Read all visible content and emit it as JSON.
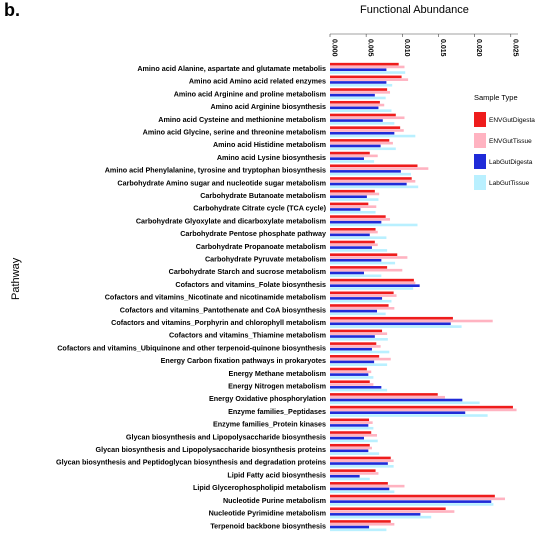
{
  "panel_label": "b.",
  "chart_data": {
    "type": "bar",
    "orientation": "horizontal",
    "title": "Functional Abundance",
    "xlabel": "",
    "ylabel": "Pathway",
    "xlim": [
      0,
      0.026
    ],
    "x_ticks": [
      "0.000",
      "0.005",
      "0.010",
      "0.015",
      "0.020",
      "0.025"
    ],
    "x_tick_values": [
      0,
      0.005,
      0.01,
      0.015,
      0.02,
      0.025
    ],
    "x_axis_position": "top",
    "grid": false,
    "legend": {
      "title": "Sample Type",
      "position": "right"
    },
    "categories": [
      "Amino acid Alanine, aspartate and glutamate metabolis",
      "Amino acid Amino acid related enzymes",
      "Amino acid Arginine and proline metabolism",
      "Amino acid Arginine biosynthesis",
      "Amino acid Cysteine and methionine metabolism",
      "Amino acid Glycine, serine and threonine metabolism",
      "Amino acid Histidine metabolism",
      "Amino acid Lysine biosynthesis",
      "Amino acid Phenylalanine, tyrosine and tryptophan biosynthesis",
      "Carbohydrate Amino sugar and nucleotide sugar metabolism",
      "Carbohydrate Butanoate metabolism",
      "Carbohydrate Citrate cycle (TCA cycle)",
      "Carbohydrate Glyoxylate and dicarboxylate metabolism",
      "Carbohydrate Pentose phosphate pathway",
      "Carbohydrate Propanoate metabolism",
      "Carbohydrate Pyruvate metabolism",
      "Carbohydrate Starch and sucrose metabolism",
      "Cofactors and vitamins_Folate biosynthesis",
      "Cofactors and vitamins_Nicotinate and nicotinamide metabolism",
      "Cofactors and vitamins_Pantothenate and CoA biosynthesis",
      "Cofactors and vitamins_Porphyrin and chlorophyll metabolism",
      "Cofactors and vitamins_Thiamine metabolism",
      "Cofactors and vitamins_Ubiquinone and other terpenoid-quinone biosynthesis",
      "Energy Carbon fixation pathways in prokaryotes",
      "Energy Methane metabolism",
      "Energy Nitrogen metabolism",
      "Energy Oxidative phosphorylation",
      "Enzyme families_Peptidases",
      "Enzyme families_Protein kinases",
      "Glycan biosynthesis and Lipopolysaccharide biosynthesis",
      "Glycan biosynthesis and Lipopolysaccharide biosynthesis proteins",
      "Glycan biosynthesis and Peptidoglycan biosynthesis and degradation proteins",
      "Lipid Fatty acid biosynthesis",
      "Lipid Glycerophospholipid metabolism",
      "Nucleotide Purine metabolism",
      "Nucleotide Pyrimidine metabolism",
      "Terpenoid backbone biosynthesis"
    ],
    "series": [
      {
        "name": "ENVGutDigesta",
        "color": "#ee1c1c",
        "values": [
          0.0095,
          0.0099,
          0.0079,
          0.0069,
          0.0091,
          0.0097,
          0.0082,
          0.0055,
          0.0121,
          0.0113,
          0.0062,
          0.0053,
          0.0077,
          0.0063,
          0.0062,
          0.0093,
          0.0079,
          0.0116,
          0.0088,
          0.0081,
          0.017,
          0.0072,
          0.0064,
          0.0068,
          0.0051,
          0.0055,
          0.0149,
          0.0253,
          0.0054,
          0.0057,
          0.0055,
          0.0084,
          0.0063,
          0.008,
          0.0228,
          0.016,
          0.0084
        ]
      },
      {
        "name": "ENVGutTissue",
        "color": "#ffb3c1",
        "values": [
          0.0103,
          0.0108,
          0.0083,
          0.0075,
          0.0103,
          0.0102,
          0.0087,
          0.0066,
          0.0136,
          0.0118,
          0.0068,
          0.0064,
          0.0083,
          0.0066,
          0.0066,
          0.0107,
          0.01,
          0.0118,
          0.0092,
          0.0089,
          0.0225,
          0.0079,
          0.007,
          0.0084,
          0.0057,
          0.006,
          0.0159,
          0.0258,
          0.0059,
          0.0065,
          0.0058,
          0.0088,
          0.0067,
          0.0103,
          0.0242,
          0.0172,
          0.0089
        ]
      },
      {
        "name": "LabGutDigesta",
        "color": "#1f2bd8",
        "values": [
          0.0078,
          0.0078,
          0.0062,
          0.0067,
          0.0073,
          0.0089,
          0.007,
          0.0047,
          0.0098,
          0.0106,
          0.0051,
          0.0042,
          0.0071,
          0.0055,
          0.0058,
          0.0071,
          0.0047,
          0.0124,
          0.0072,
          0.0065,
          0.0167,
          0.0062,
          0.0058,
          0.0061,
          0.0053,
          0.0071,
          0.0183,
          0.0187,
          0.0053,
          0.0047,
          0.0053,
          0.008,
          0.0041,
          0.0082,
          0.0223,
          0.0125,
          0.0054
        ]
      },
      {
        "name": "LabGutTissue",
        "color": "#b9f0ff",
        "values": [
          0.0104,
          0.0086,
          0.0077,
          0.0085,
          0.0089,
          0.0118,
          0.0091,
          0.0061,
          0.0112,
          0.0122,
          0.0067,
          0.0063,
          0.0121,
          0.0078,
          0.0079,
          0.009,
          0.0071,
          0.0115,
          0.0085,
          0.0077,
          0.0182,
          0.008,
          0.0082,
          0.0079,
          0.006,
          0.0079,
          0.0207,
          0.0218,
          0.006,
          0.0066,
          0.0068,
          0.0088,
          0.0055,
          0.0089,
          0.0226,
          0.014,
          0.0078
        ]
      }
    ]
  }
}
